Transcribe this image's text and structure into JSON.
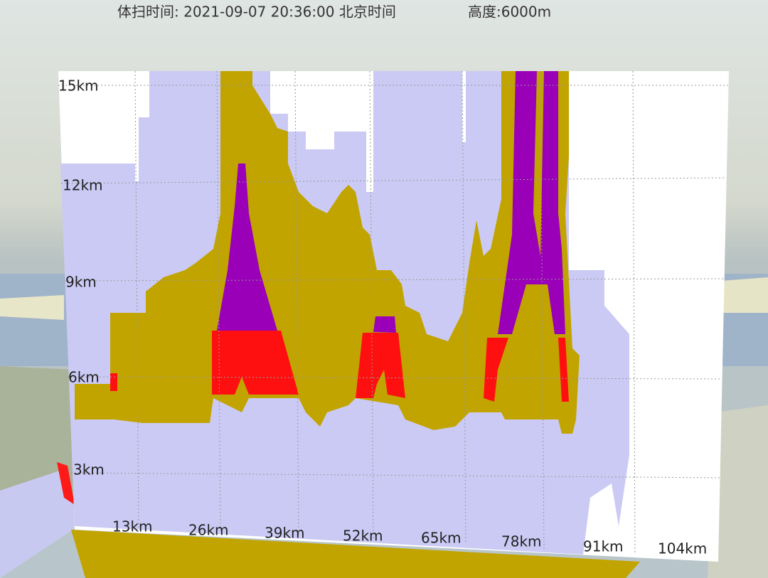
{
  "header": {
    "scan_time": "体扫时间: 2021-09-07 20:36:00 北京时间",
    "altitude": "高度:6000m"
  },
  "axes": {
    "y_labels": [
      "15km",
      "12km",
      "9km",
      "6km",
      "3km"
    ],
    "x_labels": [
      "13km",
      "26km",
      "39km",
      "52km",
      "65km",
      "78km",
      "91km",
      "104km"
    ]
  }
}
